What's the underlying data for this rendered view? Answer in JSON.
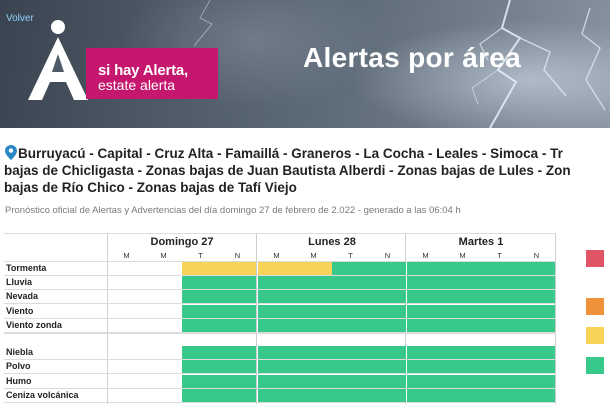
{
  "header": {
    "back_label": "Volver",
    "logo_line1": "si hay Alerta,",
    "logo_line2": "estate alerta",
    "title": "Alertas por área"
  },
  "areas": {
    "line1": "Burruyacú - Capital - Cruz Alta - Famaillá - Graneros - La Cocha - Leales - Simoca - Tr",
    "line2": "bajas de Chicligasta - Zonas bajas de Juan Bautista Alberdi - Zonas bajas de Lules - Zon",
    "line3": "bajas de Río Chico - Zonas bajas de Tafí Viejo"
  },
  "forecast_info": "Pronóstico oficial de Alertas y Advertencias del día domingo 27 de febrero de 2.022 - generado a las 06:04 h",
  "grid": {
    "days": [
      "Domingo 27",
      "Lunes 28",
      "Martes 1"
    ],
    "slots": [
      "M",
      "M",
      "T",
      "N"
    ],
    "phenomena": [
      {
        "name": "Tormenta",
        "levels": [
          "none",
          "none",
          "yellow",
          "yellow",
          "yellow",
          "yellow",
          "green",
          "green",
          "green",
          "green",
          "green",
          "green"
        ]
      },
      {
        "name": "Lluvia",
        "levels": [
          "none",
          "none",
          "green",
          "green",
          "green",
          "green",
          "green",
          "green",
          "green",
          "green",
          "green",
          "green"
        ]
      },
      {
        "name": "Nevada",
        "levels": [
          "none",
          "none",
          "green",
          "green",
          "green",
          "green",
          "green",
          "green",
          "green",
          "green",
          "green",
          "green"
        ]
      },
      {
        "name": "Viento",
        "levels": [
          "none",
          "none",
          "green",
          "green",
          "green",
          "green",
          "green",
          "green",
          "green",
          "green",
          "green",
          "green"
        ]
      },
      {
        "name": "Viento zonda",
        "levels": [
          "none",
          "none",
          "green",
          "green",
          "green",
          "green",
          "green",
          "green",
          "green",
          "green",
          "green",
          "green"
        ]
      },
      {
        "name": "Niebla",
        "levels": [
          "none",
          "none",
          "green",
          "green",
          "green",
          "green",
          "green",
          "green",
          "green",
          "green",
          "green",
          "green"
        ]
      },
      {
        "name": "Polvo",
        "levels": [
          "none",
          "none",
          "green",
          "green",
          "green",
          "green",
          "green",
          "green",
          "green",
          "green",
          "green",
          "green"
        ]
      },
      {
        "name": "Humo",
        "levels": [
          "none",
          "none",
          "green",
          "green",
          "green",
          "green",
          "green",
          "green",
          "green",
          "green",
          "green",
          "green"
        ]
      },
      {
        "name": "Ceniza volcánica",
        "levels": [
          "none",
          "none",
          "green",
          "green",
          "green",
          "green",
          "green",
          "green",
          "green",
          "green",
          "green",
          "green"
        ]
      }
    ]
  },
  "legend": [
    {
      "level": "red",
      "color": "#e05565"
    },
    {
      "level": "orange",
      "color": "#f0923a"
    },
    {
      "level": "yellow",
      "color": "#f8d35a"
    },
    {
      "level": "green",
      "color": "#38c98a"
    }
  ],
  "colors": {
    "green": "#38c98a",
    "yellow": "#f8d35a",
    "accent": "#c4176d",
    "pin": "#2b86c5",
    "link": "#8fd0ff"
  }
}
